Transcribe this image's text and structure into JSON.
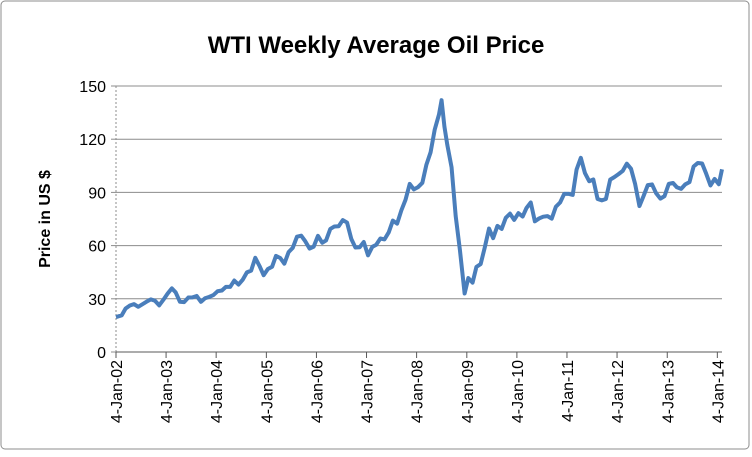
{
  "chart_data": {
    "type": "line",
    "title": "WTI Weekly Average Oil Price",
    "y_label": "Price in US $",
    "x": [
      "2002-01-04",
      "2002-02-15",
      "2002-03-15",
      "2002-04-15",
      "2002-05-15",
      "2002-06-15",
      "2002-07-15",
      "2002-08-15",
      "2002-09-15",
      "2002-10-15",
      "2002-11-15",
      "2002-12-15",
      "2003-01-15",
      "2003-02-15",
      "2003-03-15",
      "2003-04-15",
      "2003-05-15",
      "2003-06-15",
      "2003-07-15",
      "2003-08-15",
      "2003-09-15",
      "2003-10-15",
      "2003-11-15",
      "2003-12-15",
      "2004-01-15",
      "2004-02-15",
      "2004-03-15",
      "2004-04-15",
      "2004-05-15",
      "2004-06-15",
      "2004-07-15",
      "2004-08-15",
      "2004-09-15",
      "2004-10-15",
      "2004-11-15",
      "2004-12-15",
      "2005-01-15",
      "2005-02-15",
      "2005-03-15",
      "2005-04-15",
      "2005-05-15",
      "2005-06-15",
      "2005-07-15",
      "2005-08-15",
      "2005-09-15",
      "2005-10-15",
      "2005-11-15",
      "2005-12-15",
      "2006-01-15",
      "2006-02-15",
      "2006-03-15",
      "2006-04-15",
      "2006-05-15",
      "2006-06-15",
      "2006-07-15",
      "2006-08-15",
      "2006-09-15",
      "2006-10-15",
      "2006-11-15",
      "2006-12-15",
      "2007-01-15",
      "2007-02-15",
      "2007-03-15",
      "2007-04-15",
      "2007-05-15",
      "2007-06-15",
      "2007-07-15",
      "2007-08-15",
      "2007-09-15",
      "2007-10-15",
      "2007-11-15",
      "2007-12-15",
      "2008-01-15",
      "2008-02-15",
      "2008-03-15",
      "2008-04-15",
      "2008-05-15",
      "2008-06-15",
      "2008-07-04",
      "2008-07-25",
      "2008-08-15",
      "2008-09-15",
      "2008-10-15",
      "2008-11-15",
      "2008-12-19",
      "2009-01-15",
      "2009-02-15",
      "2009-03-15",
      "2009-04-15",
      "2009-05-15",
      "2009-06-15",
      "2009-07-15",
      "2009-08-15",
      "2009-09-15",
      "2009-10-15",
      "2009-11-15",
      "2009-12-15",
      "2010-01-15",
      "2010-02-15",
      "2010-03-15",
      "2010-04-15",
      "2010-05-15",
      "2010-06-15",
      "2010-07-15",
      "2010-08-15",
      "2010-09-15",
      "2010-10-15",
      "2010-11-15",
      "2010-12-15",
      "2011-01-15",
      "2011-02-15",
      "2011-03-15",
      "2011-04-15",
      "2011-05-15",
      "2011-06-15",
      "2011-07-15",
      "2011-08-15",
      "2011-09-15",
      "2011-10-15",
      "2011-11-15",
      "2011-12-15",
      "2012-01-15",
      "2012-02-15",
      "2012-03-15",
      "2012-04-15",
      "2012-05-15",
      "2012-06-15",
      "2012-07-15",
      "2012-08-15",
      "2012-09-15",
      "2012-10-15",
      "2012-11-15",
      "2012-12-15",
      "2013-01-15",
      "2013-02-15",
      "2013-03-15",
      "2013-04-15",
      "2013-05-15",
      "2013-06-15",
      "2013-07-15",
      "2013-08-15",
      "2013-09-15",
      "2013-10-15",
      "2013-11-15",
      "2013-12-15",
      "2014-01-15",
      "2014-02-07"
    ],
    "series": [
      {
        "name": "WTI",
        "color": "#4a7ebb",
        "values": [
          19.7,
          20.7,
          24.5,
          26.2,
          27,
          25.5,
          26.9,
          28.4,
          29.7,
          28.9,
          26.3,
          29.4,
          32.9,
          35.9,
          33.6,
          28.3,
          28.1,
          30.7,
          30.8,
          31.6,
          28.3,
          30.3,
          31.1,
          32.1,
          34.3,
          34.7,
          36.7,
          36.7,
          40.3,
          38,
          40.7,
          44.9,
          45.9,
          53.1,
          48.5,
          43.3,
          46.8,
          48.1,
          54.2,
          53,
          49.8,
          56.3,
          58.7,
          65,
          65.6,
          62.4,
          58.3,
          59.4,
          65.5,
          61.6,
          62.9,
          69.4,
          70.8,
          70.9,
          74.4,
          73,
          63.8,
          58.9,
          59.1,
          62,
          54.5,
          59.3,
          60.4,
          64,
          63.5,
          67.5,
          74.1,
          72.4,
          79.9,
          85.8,
          94.8,
          91.7,
          93,
          95.4,
          105.5,
          112.6,
          125.4,
          133.9,
          142,
          127,
          116.7,
          104.1,
          76.6,
          57.3,
          33,
          41.7,
          39.1,
          48,
          49.6,
          59,
          69.6,
          64.2,
          71.1,
          69.4,
          75.7,
          78,
          74.5,
          78.3,
          76.4,
          81.2,
          84.3,
          73.7,
          75.3,
          76.3,
          76.6,
          75.2,
          81.9,
          84.3,
          89.2,
          89.2,
          88.6,
          102.9,
          109.5,
          100.9,
          96.3,
          97.3,
          86.3,
          85.5,
          86.3,
          97.2,
          98.6,
          100.3,
          102.2,
          106.2,
          103.3,
          94.7,
          82.3,
          87.9,
          94.1,
          94.5,
          89.5,
          86.5,
          87.9,
          94.8,
          95.3,
          92.9,
          92,
          94.5,
          95.8,
          104.6,
          106.6,
          106.3,
          100.5,
          93.9,
          97.6,
          94.6,
          103
        ]
      }
    ],
    "xlim": [
      "2002-01-04",
      "2014-02-07"
    ],
    "xticks": [
      {
        "value": "2002-01-04",
        "label": "4-Jan-02"
      },
      {
        "value": "2003-01-04",
        "label": "4-Jan-03"
      },
      {
        "value": "2004-01-04",
        "label": "4-Jan-04"
      },
      {
        "value": "2005-01-04",
        "label": "4-Jan-05"
      },
      {
        "value": "2006-01-04",
        "label": "4-Jan-06"
      },
      {
        "value": "2007-01-04",
        "label": "4-Jan-07"
      },
      {
        "value": "2008-01-04",
        "label": "4-Jan-08"
      },
      {
        "value": "2009-01-04",
        "label": "4-Jan-09"
      },
      {
        "value": "2010-01-04",
        "label": "4-Jan-10"
      },
      {
        "value": "2011-01-04",
        "label": "4-Jan-11"
      },
      {
        "value": "2012-01-04",
        "label": "4-Jan-12"
      },
      {
        "value": "2013-01-04",
        "label": "4-Jan-13"
      },
      {
        "value": "2014-01-04",
        "label": "4-Jan-14"
      }
    ],
    "ylim": [
      0,
      150
    ],
    "yticks": [
      0,
      30,
      60,
      90,
      120,
      150
    ],
    "grid": true
  }
}
